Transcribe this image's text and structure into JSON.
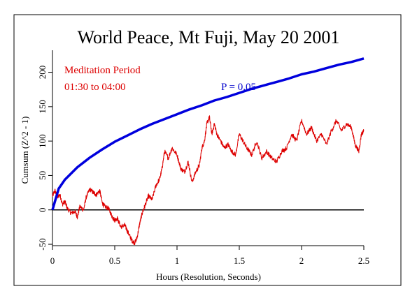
{
  "chart_data": {
    "type": "line",
    "title": "World Peace, Mt Fuji, May 20 2001",
    "xlabel": "Hours (Resolution, Seconds)",
    "ylabel": "Cumsum (Z^2 - 1)",
    "xlim": [
      0,
      2.5
    ],
    "ylim": [
      -52,
      232
    ],
    "x_ticks": [
      0,
      0.5,
      1,
      1.5,
      2,
      2.5
    ],
    "x_tick_labels": [
      "0",
      "0.5",
      "1",
      "1.5",
      "2",
      "2.5"
    ],
    "y_ticks": [
      -50,
      0,
      50,
      100,
      150,
      200
    ],
    "y_tick_labels": [
      "-50",
      "0",
      "50",
      "100",
      "150",
      "200"
    ],
    "reference_line": 0,
    "grid": false,
    "annotations": {
      "period_line1": "Meditation Period",
      "period_line2": "01:30 to 04:00",
      "probability": "P = 0.05"
    },
    "series": [
      {
        "role": "cumsum",
        "color": "#dd0000",
        "x": [
          0,
          0.02,
          0.04,
          0.06,
          0.08,
          0.1,
          0.12,
          0.15,
          0.18,
          0.2,
          0.22,
          0.25,
          0.27,
          0.3,
          0.33,
          0.35,
          0.38,
          0.4,
          0.42,
          0.45,
          0.48,
          0.5,
          0.52,
          0.55,
          0.58,
          0.6,
          0.62,
          0.64,
          0.66,
          0.68,
          0.7,
          0.72,
          0.74,
          0.77,
          0.8,
          0.83,
          0.86,
          0.88,
          0.9,
          0.93,
          0.96,
          1.0,
          1.03,
          1.06,
          1.09,
          1.12,
          1.15,
          1.18,
          1.2,
          1.22,
          1.24,
          1.26,
          1.28,
          1.3,
          1.32,
          1.35,
          1.38,
          1.41,
          1.44,
          1.47,
          1.5,
          1.53,
          1.56,
          1.6,
          1.64,
          1.68,
          1.72,
          1.76,
          1.8,
          1.84,
          1.88,
          1.92,
          1.96,
          2.0,
          2.04,
          2.08,
          2.12,
          2.16,
          2.2,
          2.24,
          2.28,
          2.32,
          2.36,
          2.4,
          2.43,
          2.46,
          2.48,
          2.5
        ],
        "y": [
          20,
          28,
          18,
          22,
          8,
          12,
          2,
          -5,
          -2,
          -10,
          5,
          0,
          18,
          30,
          25,
          22,
          28,
          10,
          5,
          2,
          -10,
          -15,
          -12,
          -25,
          -22,
          -30,
          -38,
          -45,
          -48,
          -40,
          -20,
          -5,
          5,
          20,
          15,
          35,
          45,
          60,
          85,
          75,
          90,
          80,
          60,
          55,
          70,
          40,
          55,
          65,
          90,
          100,
          125,
          135,
          110,
          125,
          110,
          100,
          90,
          95,
          85,
          80,
          110,
          100,
          90,
          80,
          100,
          75,
          85,
          75,
          70,
          85,
          90,
          110,
          100,
          130,
          110,
          120,
          100,
          110,
          95,
          115,
          130,
          115,
          125,
          120,
          95,
          85,
          110,
          115
        ]
      },
      {
        "role": "p-0.05-envelope",
        "color": "#0000dd",
        "x": [
          0,
          0.05,
          0.1,
          0.2,
          0.3,
          0.4,
          0.5,
          0.6,
          0.7,
          0.8,
          0.9,
          1.0,
          1.1,
          1.2,
          1.3,
          1.4,
          1.5,
          1.6,
          1.7,
          1.8,
          1.9,
          2.0,
          2.1,
          2.2,
          2.3,
          2.4,
          2.5
        ],
        "y": [
          0,
          31,
          44,
          62,
          76,
          88,
          99,
          108,
          117,
          125,
          132,
          139,
          146,
          152,
          159,
          164,
          170,
          176,
          181,
          186,
          191,
          197,
          201,
          206,
          211,
          215,
          220
        ]
      }
    ]
  }
}
